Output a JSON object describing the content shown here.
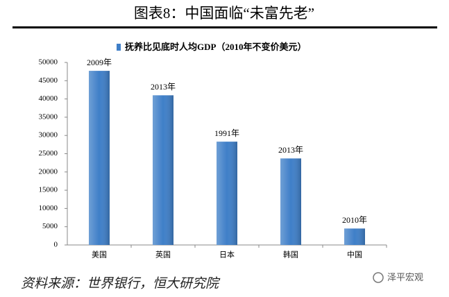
{
  "chart_data": {
    "type": "bar",
    "title": "图表8：中国面临“未富先老”",
    "legend": "抚养比见底时人均GDP（2010年不变价美元）",
    "categories": [
      "美国",
      "英国",
      "日本",
      "韩国",
      "中国"
    ],
    "values": [
      47700,
      41000,
      28300,
      23700,
      4500
    ],
    "bar_labels": [
      "2009年",
      "2013年",
      "1991年",
      "2013年",
      "2010年"
    ],
    "color": "#3f7fc8",
    "ylim": [
      0,
      50000
    ],
    "yticks": [
      0,
      5000,
      10000,
      15000,
      20000,
      25000,
      30000,
      35000,
      40000,
      45000,
      50000
    ],
    "source": "资料来源：世界银行，恒大研究院",
    "watermark": "泽平宏观"
  }
}
